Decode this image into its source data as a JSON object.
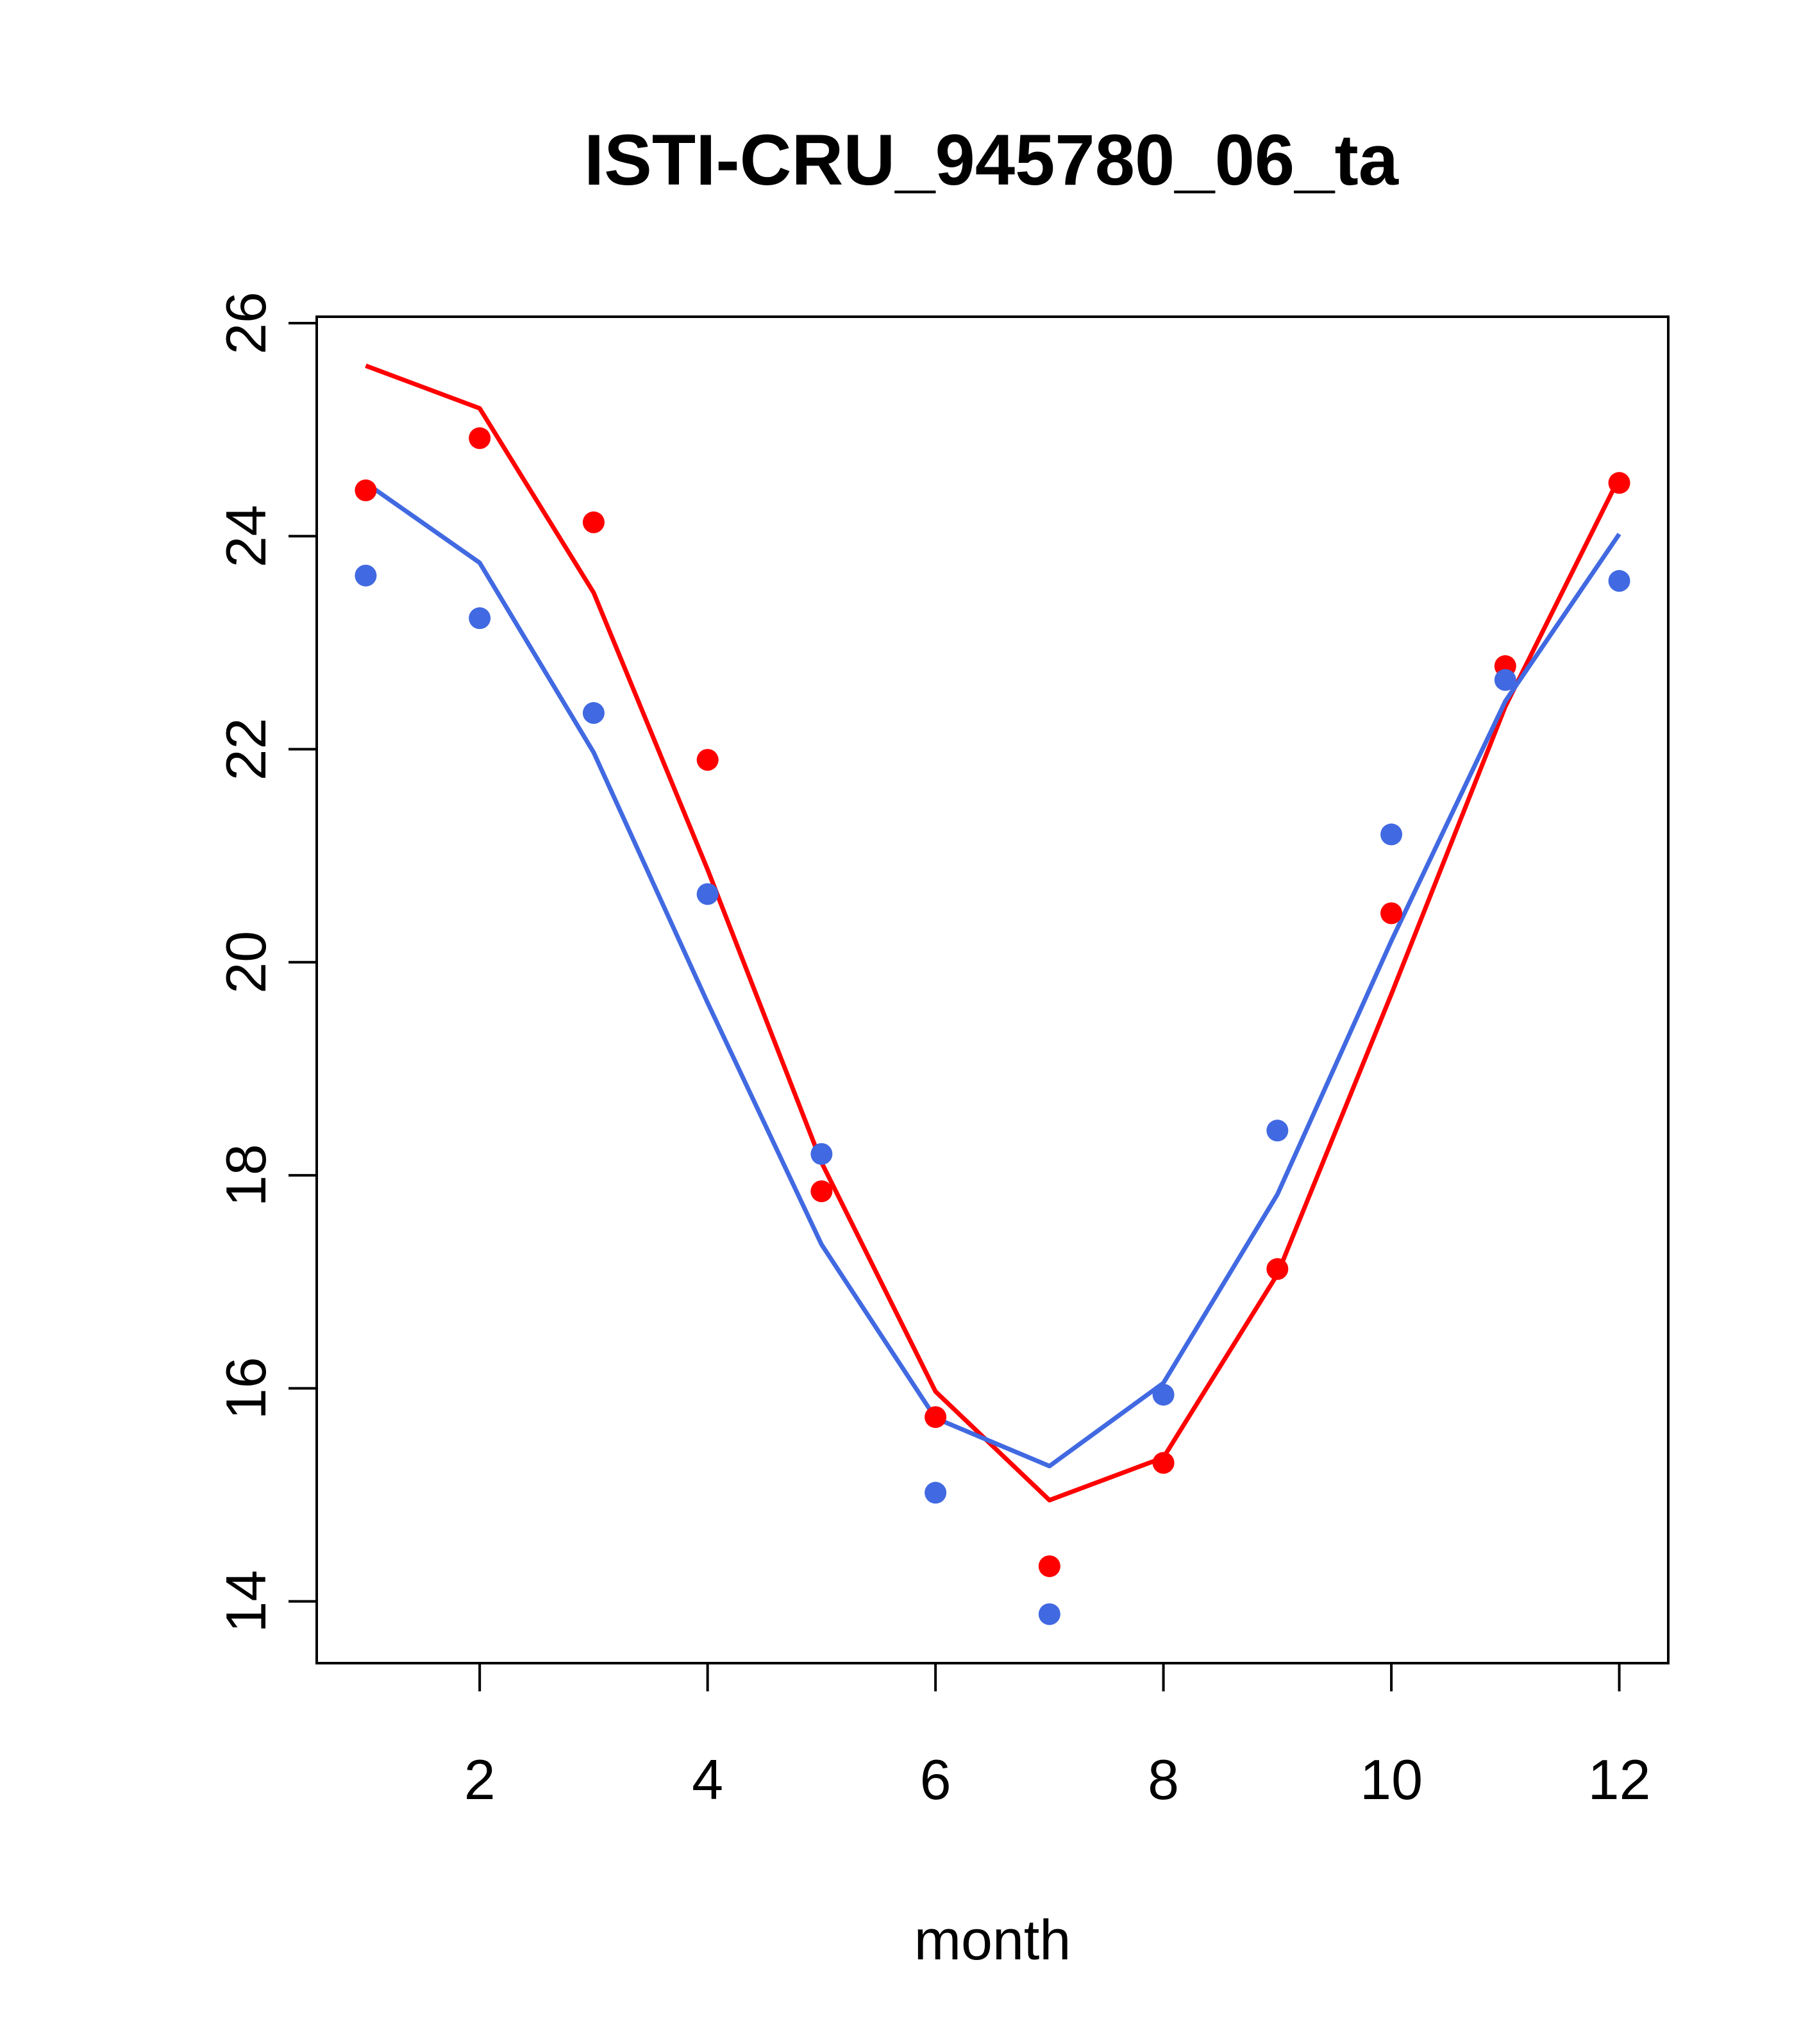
{
  "chart_data": {
    "type": "line",
    "title": "ISTI-CRU_945780_06_ta",
    "xlabel": "month",
    "ylabel": "",
    "xlim": [
      0.57,
      12.43
    ],
    "ylim": [
      13.42,
      26.06
    ],
    "xticks": [
      2,
      4,
      6,
      8,
      10,
      12
    ],
    "yticks": [
      14,
      16,
      18,
      20,
      22,
      24,
      26
    ],
    "colors": {
      "red": "#ff0000",
      "blue": "#4169e1"
    },
    "x": [
      1,
      2,
      3,
      4,
      5,
      6,
      7,
      8,
      9,
      10,
      11,
      12
    ],
    "lines": [
      {
        "color": "red",
        "values": [
          25.6,
          25.2,
          23.47,
          20.87,
          18.12,
          15.97,
          14.95,
          15.35,
          17.07,
          19.7,
          22.4,
          24.55
        ]
      },
      {
        "color": "blue",
        "values": [
          24.5,
          23.75,
          21.97,
          19.62,
          17.35,
          15.72,
          15.27,
          16.05,
          17.82,
          20.2,
          22.45,
          24.02
        ]
      }
    ],
    "points": [
      {
        "color": "red",
        "values": [
          24.43,
          24.92,
          24.13,
          21.9,
          17.85,
          15.73,
          14.33,
          15.3,
          17.12,
          20.46,
          22.78,
          24.5
        ]
      },
      {
        "color": "blue",
        "values": [
          23.63,
          23.23,
          22.34,
          20.64,
          18.2,
          15.02,
          13.88,
          15.94,
          18.42,
          21.2,
          22.65,
          23.58
        ]
      }
    ]
  }
}
